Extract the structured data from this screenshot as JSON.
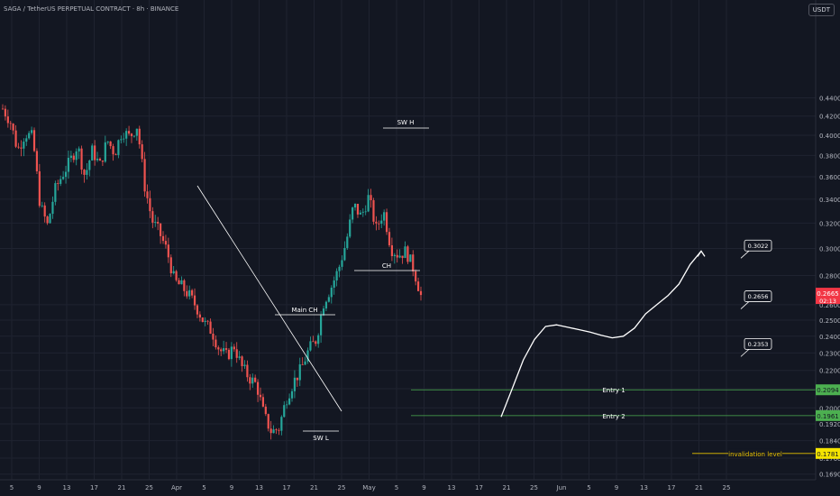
{
  "header": {
    "title": "SAGA / TetherUS PERPETUAL CONTRACT · 8h · BINANCE",
    "currency": "USDT"
  },
  "colors": {
    "background": "#131722",
    "grid": "#1f2330",
    "up": "#26a69a",
    "down": "#ef5350",
    "text": "#b2b5be",
    "white": "#ffffff",
    "entry_line": "#4caf50",
    "entry_tag": "#4caf50",
    "invalid_line": "#e8c100",
    "invalid_tag": "#f5e400",
    "price_tag": "#f23645"
  },
  "chart_data": {
    "type": "candlestick",
    "y_scale": "log",
    "ylim": [
      0.166,
      0.452
    ],
    "y_ticks": [
      "0.4400",
      "0.4200",
      "0.4000",
      "0.3800",
      "0.3600",
      "0.3400",
      "0.3200",
      "0.3000",
      "0.2800",
      "0.2600",
      "0.2500",
      "0.2400",
      "0.2300",
      "0.2200",
      "0.2100",
      "0.2000",
      "0.1920",
      "0.1840",
      "0.1760",
      "0.1690"
    ],
    "x_ticks": [
      "5",
      "9",
      "13",
      "17",
      "21",
      "25",
      "Apr",
      "5",
      "9",
      "13",
      "17",
      "21",
      "25",
      "May",
      "5",
      "9",
      "13",
      "17",
      "21",
      "25",
      "Jun",
      "5",
      "9",
      "13",
      "17",
      "21",
      "25"
    ],
    "price_path": [
      0.428,
      0.415,
      0.385,
      0.402,
      0.398,
      0.335,
      0.318,
      0.348,
      0.362,
      0.374,
      0.39,
      0.36,
      0.385,
      0.37,
      0.395,
      0.382,
      0.405,
      0.398,
      0.41,
      0.352,
      0.322,
      0.312,
      0.298,
      0.276,
      0.272,
      0.266,
      0.258,
      0.248,
      0.243,
      0.232,
      0.228,
      0.234,
      0.222,
      0.216,
      0.212,
      0.196,
      0.188,
      0.19,
      0.205,
      0.214,
      0.221,
      0.232,
      0.238,
      0.262,
      0.272,
      0.285,
      0.305,
      0.335,
      0.325,
      0.342,
      0.315,
      0.33,
      0.3,
      0.295,
      0.298,
      0.285,
      0.2665
    ],
    "current_price": "0.2665",
    "countdown": "02:13",
    "targets": [
      "0.3022",
      "0.2656",
      "0.2353"
    ],
    "entries": [
      {
        "label": "Entry 1",
        "price": "0.2094"
      },
      {
        "label": "Entry 2",
        "price": "0.1961"
      }
    ],
    "invalidation": {
      "label": "invalidation level",
      "price": "0.1781"
    },
    "annotations": {
      "sw_high": "SW H",
      "sw_low": "SW L",
      "main_ch": "Main CH",
      "ch": "CH"
    },
    "projection_path": [
      0.1955,
      0.21,
      0.226,
      0.238,
      0.246,
      0.247,
      0.2455,
      0.244,
      0.2425,
      0.2405,
      0.239,
      0.24,
      0.245,
      0.254,
      0.26,
      0.266,
      0.274,
      0.288,
      0.298
    ]
  }
}
